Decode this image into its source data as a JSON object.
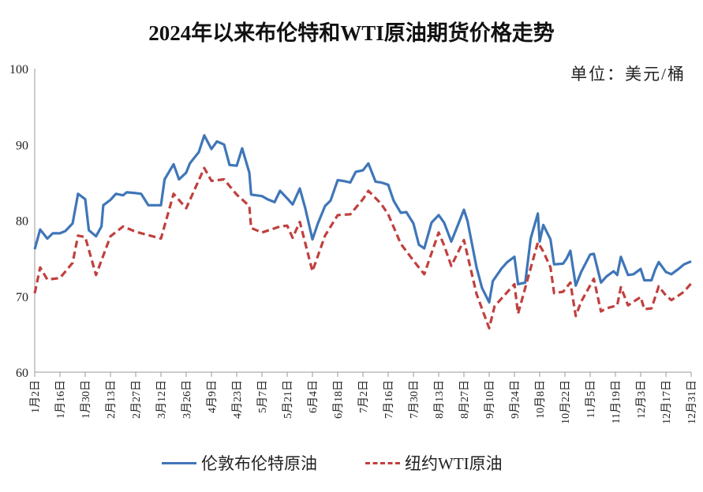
{
  "chart_data": {
    "type": "line",
    "title": "2024年以来布伦特和WTI原油期货价格走势",
    "unit_label": "单位：美元/桶",
    "ylim": [
      60,
      100
    ],
    "yticks": [
      "60",
      "70",
      "80",
      "90",
      "100"
    ],
    "grid": false,
    "legend_placement": "bottom",
    "xtick_labels": [
      "1月2日",
      "1月16日",
      "1月30日",
      "2月13日",
      "2月27日",
      "3月12日",
      "3月26日",
      "4月9日",
      "4月23日",
      "5月7日",
      "5月21日",
      "6月4日",
      "6月18日",
      "7月2日",
      "7月16日",
      "7月30日",
      "8月13日",
      "8月27日",
      "9月10日",
      "9月24日",
      "10月8日",
      "10月22日",
      "11月5日",
      "11月19日",
      "12月3日",
      "12月17日",
      "12月31日"
    ],
    "series": [
      {
        "name": "伦敦布伦特原油",
        "color": "#3f76b8",
        "style": "solid",
        "points": [
          [
            "2024-01-02",
            76.2
          ],
          [
            "2024-01-05",
            78.8
          ],
          [
            "2024-01-09",
            77.6
          ],
          [
            "2024-01-12",
            78.3
          ],
          [
            "2024-01-16",
            78.3
          ],
          [
            "2024-01-19",
            78.6
          ],
          [
            "2024-01-23",
            79.6
          ],
          [
            "2024-01-26",
            83.5
          ],
          [
            "2024-01-30",
            82.8
          ],
          [
            "2024-02-01",
            78.7
          ],
          [
            "2024-02-05",
            77.9
          ],
          [
            "2024-02-08",
            79.2
          ],
          [
            "2024-02-09",
            82.0
          ],
          [
            "2024-02-13",
            82.7
          ],
          [
            "2024-02-16",
            83.5
          ],
          [
            "2024-02-20",
            83.3
          ],
          [
            "2024-02-22",
            83.7
          ],
          [
            "2024-02-27",
            83.6
          ],
          [
            "2024-03-01",
            83.5
          ],
          [
            "2024-03-05",
            82.0
          ],
          [
            "2024-03-08",
            82.0
          ],
          [
            "2024-03-12",
            82.0
          ],
          [
            "2024-03-14",
            85.4
          ],
          [
            "2024-03-19",
            87.4
          ],
          [
            "2024-03-22",
            85.4
          ],
          [
            "2024-03-26",
            86.3
          ],
          [
            "2024-03-28",
            87.5
          ],
          [
            "2024-04-02",
            89.0
          ],
          [
            "2024-04-05",
            91.2
          ],
          [
            "2024-04-09",
            89.4
          ],
          [
            "2024-04-12",
            90.4
          ],
          [
            "2024-04-16",
            90.0
          ],
          [
            "2024-04-19",
            87.3
          ],
          [
            "2024-04-23",
            87.2
          ],
          [
            "2024-04-26",
            89.5
          ],
          [
            "2024-04-30",
            86.3
          ],
          [
            "2024-05-01",
            83.4
          ],
          [
            "2024-05-07",
            83.2
          ],
          [
            "2024-05-10",
            82.8
          ],
          [
            "2024-05-14",
            82.4
          ],
          [
            "2024-05-17",
            83.9
          ],
          [
            "2024-05-21",
            82.9
          ],
          [
            "2024-05-24",
            82.1
          ],
          [
            "2024-05-28",
            84.2
          ],
          [
            "2024-05-31",
            81.6
          ],
          [
            "2024-06-04",
            77.5
          ],
          [
            "2024-06-07",
            79.6
          ],
          [
            "2024-06-11",
            81.9
          ],
          [
            "2024-06-14",
            82.6
          ],
          [
            "2024-06-18",
            85.3
          ],
          [
            "2024-06-21",
            85.2
          ],
          [
            "2024-06-25",
            85.0
          ],
          [
            "2024-06-28",
            86.4
          ],
          [
            "2024-07-02",
            86.6
          ],
          [
            "2024-07-05",
            87.5
          ],
          [
            "2024-07-09",
            85.1
          ],
          [
            "2024-07-12",
            85.0
          ],
          [
            "2024-07-16",
            84.7
          ],
          [
            "2024-07-19",
            82.6
          ],
          [
            "2024-07-23",
            81.0
          ],
          [
            "2024-07-26",
            81.1
          ],
          [
            "2024-07-30",
            79.6
          ],
          [
            "2024-08-02",
            76.8
          ],
          [
            "2024-08-05",
            76.3
          ],
          [
            "2024-08-09",
            79.7
          ],
          [
            "2024-08-13",
            80.7
          ],
          [
            "2024-08-16",
            79.7
          ],
          [
            "2024-08-20",
            77.2
          ],
          [
            "2024-08-23",
            79.0
          ],
          [
            "2024-08-27",
            81.4
          ],
          [
            "2024-08-29",
            79.9
          ],
          [
            "2024-09-03",
            73.8
          ],
          [
            "2024-09-06",
            71.1
          ],
          [
            "2024-09-10",
            69.2
          ],
          [
            "2024-09-12",
            72.0
          ],
          [
            "2024-09-17",
            73.7
          ],
          [
            "2024-09-20",
            74.5
          ],
          [
            "2024-09-24",
            75.2
          ],
          [
            "2024-09-26",
            71.6
          ],
          [
            "2024-09-30",
            71.8
          ],
          [
            "2024-10-03",
            77.6
          ],
          [
            "2024-10-07",
            80.9
          ],
          [
            "2024-10-08",
            77.2
          ],
          [
            "2024-10-10",
            79.4
          ],
          [
            "2024-10-14",
            77.5
          ],
          [
            "2024-10-16",
            74.2
          ],
          [
            "2024-10-21",
            74.3
          ],
          [
            "2024-10-23",
            75.0
          ],
          [
            "2024-10-25",
            76.0
          ],
          [
            "2024-10-28",
            71.4
          ],
          [
            "2024-10-31",
            73.2
          ],
          [
            "2024-11-05",
            75.5
          ],
          [
            "2024-11-07",
            75.6
          ],
          [
            "2024-11-11",
            71.8
          ],
          [
            "2024-11-14",
            72.6
          ],
          [
            "2024-11-18",
            73.3
          ],
          [
            "2024-11-20",
            72.8
          ],
          [
            "2024-11-22",
            75.2
          ],
          [
            "2024-11-26",
            72.8
          ],
          [
            "2024-11-29",
            72.9
          ],
          [
            "2024-12-03",
            73.6
          ],
          [
            "2024-12-05",
            72.1
          ],
          [
            "2024-12-09",
            72.1
          ],
          [
            "2024-12-11",
            73.5
          ],
          [
            "2024-12-13",
            74.5
          ],
          [
            "2024-12-17",
            73.2
          ],
          [
            "2024-12-20",
            72.9
          ],
          [
            "2024-12-24",
            73.6
          ],
          [
            "2024-12-27",
            74.2
          ],
          [
            "2024-12-31",
            74.6
          ]
        ]
      },
      {
        "name": "纽约WTI原油",
        "color": "#c0403e",
        "style": "dashed",
        "points": [
          [
            "2024-01-02",
            70.4
          ],
          [
            "2024-01-05",
            73.8
          ],
          [
            "2024-01-09",
            72.2
          ],
          [
            "2024-01-16",
            72.4
          ],
          [
            "2024-01-23",
            74.4
          ],
          [
            "2024-01-26",
            78.0
          ],
          [
            "2024-01-30",
            77.8
          ],
          [
            "2024-02-05",
            72.8
          ],
          [
            "2024-02-13",
            77.9
          ],
          [
            "2024-02-20",
            79.2
          ],
          [
            "2024-02-27",
            78.5
          ],
          [
            "2024-03-12",
            77.6
          ],
          [
            "2024-03-19",
            83.5
          ],
          [
            "2024-03-26",
            81.6
          ],
          [
            "2024-04-05",
            86.9
          ],
          [
            "2024-04-09",
            85.2
          ],
          [
            "2024-04-16",
            85.4
          ],
          [
            "2024-04-23",
            83.4
          ],
          [
            "2024-04-30",
            81.9
          ],
          [
            "2024-05-01",
            79.0
          ],
          [
            "2024-05-07",
            78.4
          ],
          [
            "2024-05-17",
            79.2
          ],
          [
            "2024-05-21",
            79.3
          ],
          [
            "2024-05-24",
            77.7
          ],
          [
            "2024-05-28",
            79.8
          ],
          [
            "2024-06-04",
            73.3
          ],
          [
            "2024-06-11",
            78.0
          ],
          [
            "2024-06-18",
            80.7
          ],
          [
            "2024-06-25",
            80.8
          ],
          [
            "2024-07-02",
            82.8
          ],
          [
            "2024-07-05",
            83.9
          ],
          [
            "2024-07-12",
            82.2
          ],
          [
            "2024-07-16",
            80.8
          ],
          [
            "2024-07-23",
            76.9
          ],
          [
            "2024-07-30",
            74.7
          ],
          [
            "2024-08-05",
            72.9
          ],
          [
            "2024-08-13",
            78.4
          ],
          [
            "2024-08-16",
            76.7
          ],
          [
            "2024-08-20",
            74.0
          ],
          [
            "2024-08-27",
            77.4
          ],
          [
            "2024-09-03",
            70.3
          ],
          [
            "2024-09-10",
            65.8
          ],
          [
            "2024-09-13",
            68.7
          ],
          [
            "2024-09-24",
            71.6
          ],
          [
            "2024-09-26",
            67.7
          ],
          [
            "2024-10-03",
            73.7
          ],
          [
            "2024-10-07",
            77.1
          ],
          [
            "2024-10-10",
            75.9
          ],
          [
            "2024-10-14",
            73.8
          ],
          [
            "2024-10-16",
            70.4
          ],
          [
            "2024-10-21",
            70.6
          ],
          [
            "2024-10-25",
            71.8
          ],
          [
            "2024-10-28",
            67.4
          ],
          [
            "2024-10-31",
            69.3
          ],
          [
            "2024-11-07",
            72.3
          ],
          [
            "2024-11-11",
            68.0
          ],
          [
            "2024-11-14",
            68.4
          ],
          [
            "2024-11-20",
            68.8
          ],
          [
            "2024-11-22",
            71.2
          ],
          [
            "2024-11-26",
            68.8
          ],
          [
            "2024-12-03",
            69.9
          ],
          [
            "2024-12-05",
            68.3
          ],
          [
            "2024-12-09",
            68.4
          ],
          [
            "2024-12-13",
            71.3
          ],
          [
            "2024-12-17",
            70.1
          ],
          [
            "2024-12-20",
            69.5
          ],
          [
            "2024-12-24",
            70.1
          ],
          [
            "2024-12-27",
            70.6
          ],
          [
            "2024-12-31",
            71.7
          ]
        ]
      }
    ]
  }
}
